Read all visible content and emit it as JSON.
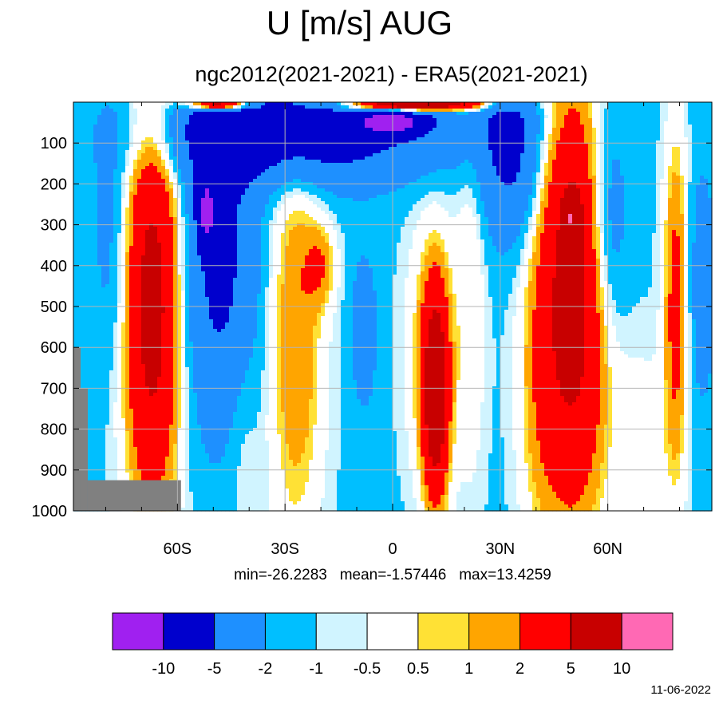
{
  "title": "U [m/s] AUG",
  "subtitle": "ngc2012(2021-2021) - ERA5(2021-2021)",
  "stats": {
    "min": "min=-26.2283",
    "mean": "mean=-1.57446",
    "max": "max=13.4259"
  },
  "date": "11-06-2022",
  "chart_data": {
    "type": "heatmap",
    "title": "U [m/s] AUG",
    "subtitle": "ngc2012(2021-2021) - ERA5(2021-2021)",
    "x": {
      "range": [
        -89,
        89
      ],
      "ticks": [
        -60,
        -30,
        0,
        30,
        60
      ],
      "tick_labels": [
        "60S",
        "30S",
        "0",
        "30N",
        "60N"
      ]
    },
    "y": {
      "range": [
        0,
        1000
      ],
      "reversed": true,
      "ticks": [
        100,
        200,
        300,
        400,
        500,
        600,
        700,
        800,
        900,
        1000
      ],
      "tick_labels": [
        "100",
        "200",
        "300",
        "400",
        "500",
        "600",
        "700",
        "800",
        "900",
        "1000"
      ]
    },
    "grid": true,
    "colorbar": {
      "levels": [
        -10,
        -5,
        -2,
        -1,
        -0.5,
        0.5,
        1,
        2,
        5,
        10
      ],
      "labels": [
        "-10",
        "-5",
        "-2",
        "-1",
        "-0.5",
        "0.5",
        "1",
        "2",
        "5",
        "10"
      ],
      "colors": [
        "#a020f0",
        "#0000cd",
        "#1e90ff",
        "#00bfff",
        "#d0f4ff",
        "#ffffff",
        "#ffe135",
        "#ffa500",
        "#ff0000",
        "#c80000",
        "#ff69b4"
      ]
    },
    "missing_color": "#808080",
    "features": [
      {
        "lat": -67,
        "p": 500,
        "sx": 5.5,
        "sy": 350,
        "amp": 7.6
      },
      {
        "lat": 50,
        "p": 480,
        "sx": 7,
        "sy": 380,
        "amp": 7.8
      },
      {
        "lat": 50,
        "p": 280,
        "sx": 1.6,
        "sy": 40,
        "amp": 5
      },
      {
        "lat": 12,
        "p": 720,
        "sx": 2.5,
        "sy": 180,
        "amp": 8
      },
      {
        "lat": 11,
        "p": 610,
        "sx": 5,
        "sy": 240,
        "amp": 2.5
      },
      {
        "lat": -27,
        "p": 580,
        "sx": 5.5,
        "sy": 360,
        "amp": 3.2
      },
      {
        "lat": -20,
        "p": 400,
        "sx": 3,
        "sy": 70,
        "amp": 2.3
      },
      {
        "lat": 79,
        "p": 500,
        "sx": 2.5,
        "sy": 310,
        "amp": 4
      },
      {
        "lat": -35,
        "p": 80,
        "sx": 22,
        "sy": 80,
        "amp": -5
      },
      {
        "lat": -48,
        "p": 390,
        "sx": 7,
        "sy": 270,
        "amp": -4.8
      },
      {
        "lat": -52,
        "p": 270,
        "sx": 1.8,
        "sy": 60,
        "amp": -7
      },
      {
        "lat": -8,
        "p": 30,
        "sx": 28,
        "sy": 100,
        "amp": -3.5
      },
      {
        "lat": 0,
        "p": 50,
        "sx": 6,
        "sy": 20,
        "amp": -8
      },
      {
        "lat": 33,
        "p": 120,
        "sx": 6,
        "sy": 150,
        "amp": -4.5
      },
      {
        "lat": 60,
        "p": 300,
        "sx": 4,
        "sy": 200,
        "amp": -3
      },
      {
        "lat": -78,
        "p": 350,
        "sx": 4,
        "sy": 220,
        "amp": -1.6
      },
      {
        "lat": -8,
        "p": 560,
        "sx": 2.5,
        "sy": 130,
        "amp": -2.2
      },
      {
        "lat": 5,
        "p": 5,
        "sx": 14,
        "sy": 12,
        "amp": 14
      },
      {
        "lat": -48,
        "p": 5,
        "sx": 6,
        "sy": 10,
        "amp": 12
      },
      {
        "lat": 22,
        "p": 450,
        "sx": 3,
        "sy": 350,
        "amp": 1.5
      },
      {
        "lat": 40,
        "p": 750,
        "sx": 4,
        "sy": 260,
        "amp": 1.2
      },
      {
        "lat": -42,
        "p": 780,
        "sx": 3,
        "sy": 200,
        "amp": 1.0
      },
      {
        "lat": 70,
        "p": 850,
        "sx": 5,
        "sy": 180,
        "amp": 1.3
      },
      {
        "lat": 86,
        "p": 450,
        "sx": 3,
        "sy": 220,
        "amp": -1.8
      }
    ],
    "background": -1.2,
    "missing_regions": [
      {
        "lat": [
          -89,
          -87
        ],
        "p": [
          600,
          1000
        ]
      },
      {
        "lat": [
          -87,
          -85
        ],
        "p": [
          700,
          1000
        ]
      },
      {
        "lat": [
          -85,
          -59
        ],
        "p": [
          925,
          1000
        ]
      }
    ]
  }
}
